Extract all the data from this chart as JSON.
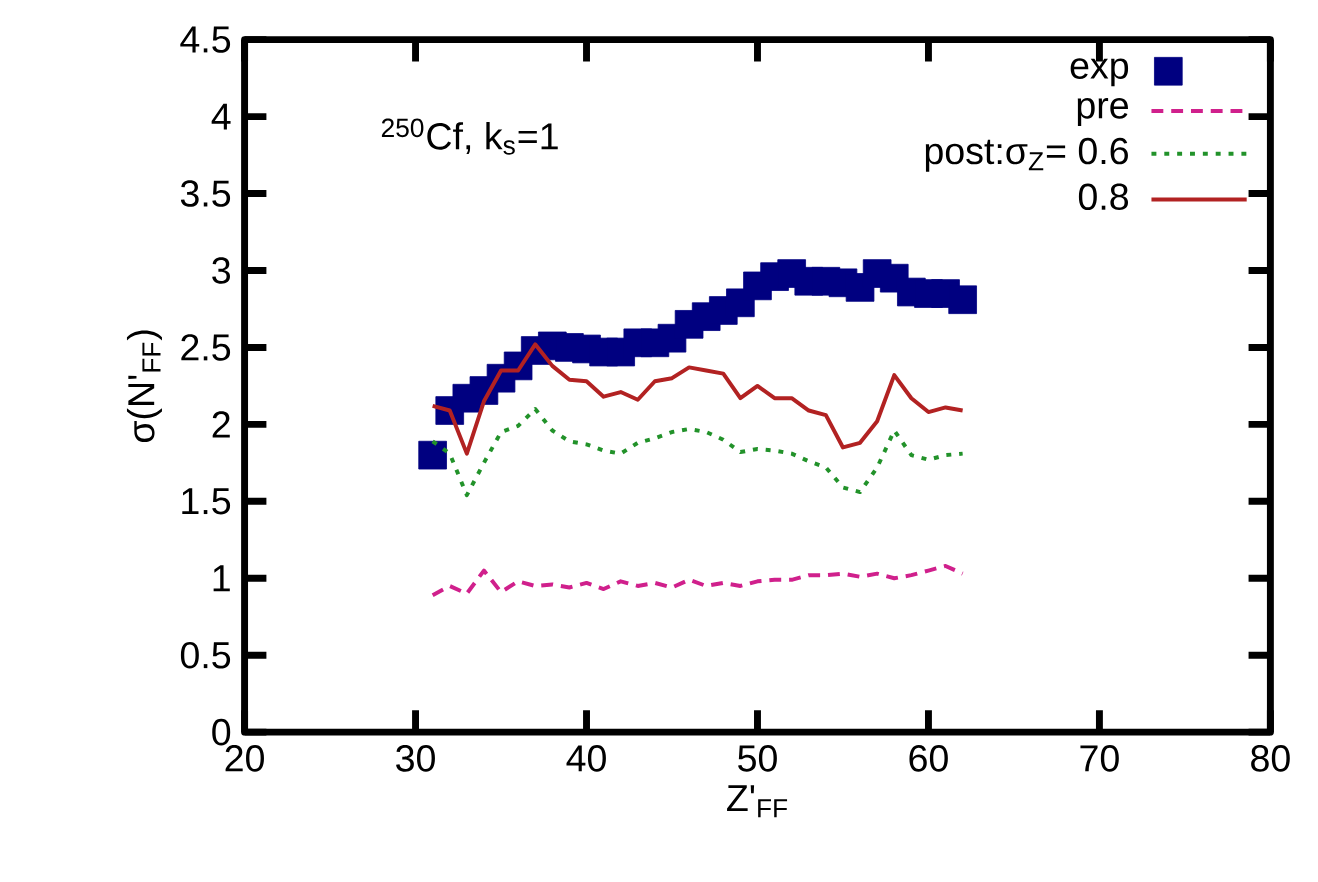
{
  "chart_data": {
    "type": "line",
    "xlabel": "Z'$_{FF}$",
    "ylabel": "σ(N'$_{FF}$)",
    "annotations": [
      "$^{250}$Cf, k$_{s}$=1"
    ],
    "x": [
      31,
      32,
      33,
      34,
      35,
      36,
      37,
      38,
      39,
      40,
      41,
      42,
      43,
      44,
      45,
      46,
      47,
      48,
      49,
      50,
      51,
      52,
      53,
      54,
      55,
      56,
      57,
      58,
      59,
      60,
      61,
      62
    ],
    "xlim": [
      20,
      80
    ],
    "xticks": [
      20,
      30,
      40,
      50,
      60,
      70,
      80
    ],
    "ylim": [
      0,
      4.5
    ],
    "yticks": [
      0,
      0.5,
      1,
      1.5,
      2,
      2.5,
      3,
      3.5,
      4,
      4.5
    ],
    "grid": false,
    "legend": "top right",
    "series": [
      {
        "name": "exp",
        "type": "scatter",
        "marker": "square",
        "color": "#000080",
        "values": [
          1.8,
          2.09,
          2.17,
          2.22,
          2.3,
          2.38,
          2.48,
          2.51,
          2.5,
          2.49,
          2.47,
          2.47,
          2.53,
          2.53,
          2.56,
          2.65,
          2.7,
          2.74,
          2.79,
          2.9,
          2.96,
          2.98,
          2.93,
          2.93,
          2.92,
          2.89,
          2.98,
          2.95,
          2.86,
          2.85,
          2.85,
          2.81
        ]
      },
      {
        "name": "pre",
        "type": "line",
        "line_style": "dashed",
        "color": "#d0208c",
        "values": [
          0.89,
          0.95,
          0.9,
          1.05,
          0.91,
          0.98,
          0.95,
          0.96,
          0.94,
          0.97,
          0.93,
          0.98,
          0.95,
          0.97,
          0.94,
          0.99,
          0.95,
          0.97,
          0.95,
          0.98,
          0.99,
          0.99,
          1.02,
          1.02,
          1.03,
          1.01,
          1.03,
          1.0,
          1.02,
          1.05,
          1.08,
          1.03
        ]
      },
      {
        "name": "post:σ$_{Z}$= 0.6",
        "type": "line",
        "line_style": "dotted",
        "color": "#22922a",
        "values": [
          1.89,
          1.81,
          1.54,
          1.75,
          1.95,
          1.99,
          2.1,
          1.96,
          1.89,
          1.87,
          1.83,
          1.81,
          1.88,
          1.91,
          1.95,
          1.97,
          1.95,
          1.9,
          1.82,
          1.84,
          1.83,
          1.81,
          1.76,
          1.72,
          1.59,
          1.56,
          1.72,
          1.96,
          1.8,
          1.77,
          1.8,
          1.81
        ]
      },
      {
        "name": "0.8",
        "type": "line",
        "line_style": "solid",
        "color": "#b22222",
        "values": [
          2.12,
          2.09,
          1.81,
          2.15,
          2.35,
          2.35,
          2.52,
          2.38,
          2.29,
          2.28,
          2.18,
          2.21,
          2.16,
          2.28,
          2.3,
          2.37,
          2.35,
          2.33,
          2.17,
          2.25,
          2.17,
          2.17,
          2.09,
          2.06,
          1.85,
          1.88,
          2.02,
          2.32,
          2.17,
          2.08,
          2.11,
          2.09
        ]
      }
    ]
  }
}
